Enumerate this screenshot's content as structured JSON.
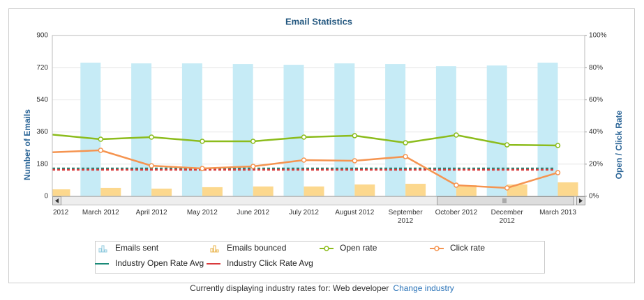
{
  "chart_data": {
    "type": "bar-line",
    "title": "Email Statistics",
    "y_label": "Number of Emails",
    "y2_label": "Open / Click Rate",
    "categories": [
      "2012",
      "March 2012",
      "April 2012",
      "May 2012",
      "June 2012",
      "July 2012",
      "August 2012",
      "September 2012",
      "October 2012",
      "December 2012",
      "March 2013"
    ],
    "series": [
      {
        "name": "Emails sent",
        "color": "#c6ebf6",
        "type": "bar",
        "values": [
          null,
          748,
          744,
          744,
          740,
          736,
          744,
          740,
          728,
          732,
          748
        ]
      },
      {
        "name": "Emails bounced",
        "color": "#fcd88e",
        "type": "bar",
        "values": [
          39,
          47,
          43,
          51,
          55,
          55,
          66,
          70,
          62,
          66,
          78
        ]
      },
      {
        "name": "Open rate",
        "color": "#8cbc1c",
        "type": "line",
        "axis": "y2",
        "values": [
          38.5,
          35.5,
          36.8,
          34.2,
          34.2,
          36.8,
          37.7,
          33.3,
          38.1,
          32,
          31.6
        ]
      },
      {
        "name": "Click rate",
        "color": "#f59450",
        "type": "line",
        "axis": "y2",
        "values": [
          27.3,
          28.6,
          19,
          17.3,
          18.6,
          22.5,
          22.1,
          24.7,
          6.9,
          5.2,
          14.7
        ]
      }
    ],
    "reference_lines": [
      {
        "name": "Industry Open Rate Avg",
        "color": "#1a8a78",
        "axis": "y2",
        "value": 17.3
      },
      {
        "name": "Industry Click Rate Avg",
        "color": "#d93a3c",
        "axis": "y2",
        "value": 16.5
      }
    ],
    "ylim": [
      0,
      900
    ],
    "yticks": [
      0,
      180,
      360,
      540,
      720,
      900
    ],
    "y2lim": [
      0,
      100
    ],
    "y2ticks": [
      {
        "value": 0,
        "label": "0%"
      },
      {
        "value": 20,
        "label": "20%"
      },
      {
        "value": 40,
        "label": "40%"
      },
      {
        "value": 60,
        "label": "60%"
      },
      {
        "value": 80,
        "label": "80%"
      },
      {
        "value": 100,
        "label": "100%"
      }
    ],
    "grid": true,
    "footer": {
      "text": "Currently displaying industry rates for: Web developer",
      "link": "Change industry"
    }
  }
}
